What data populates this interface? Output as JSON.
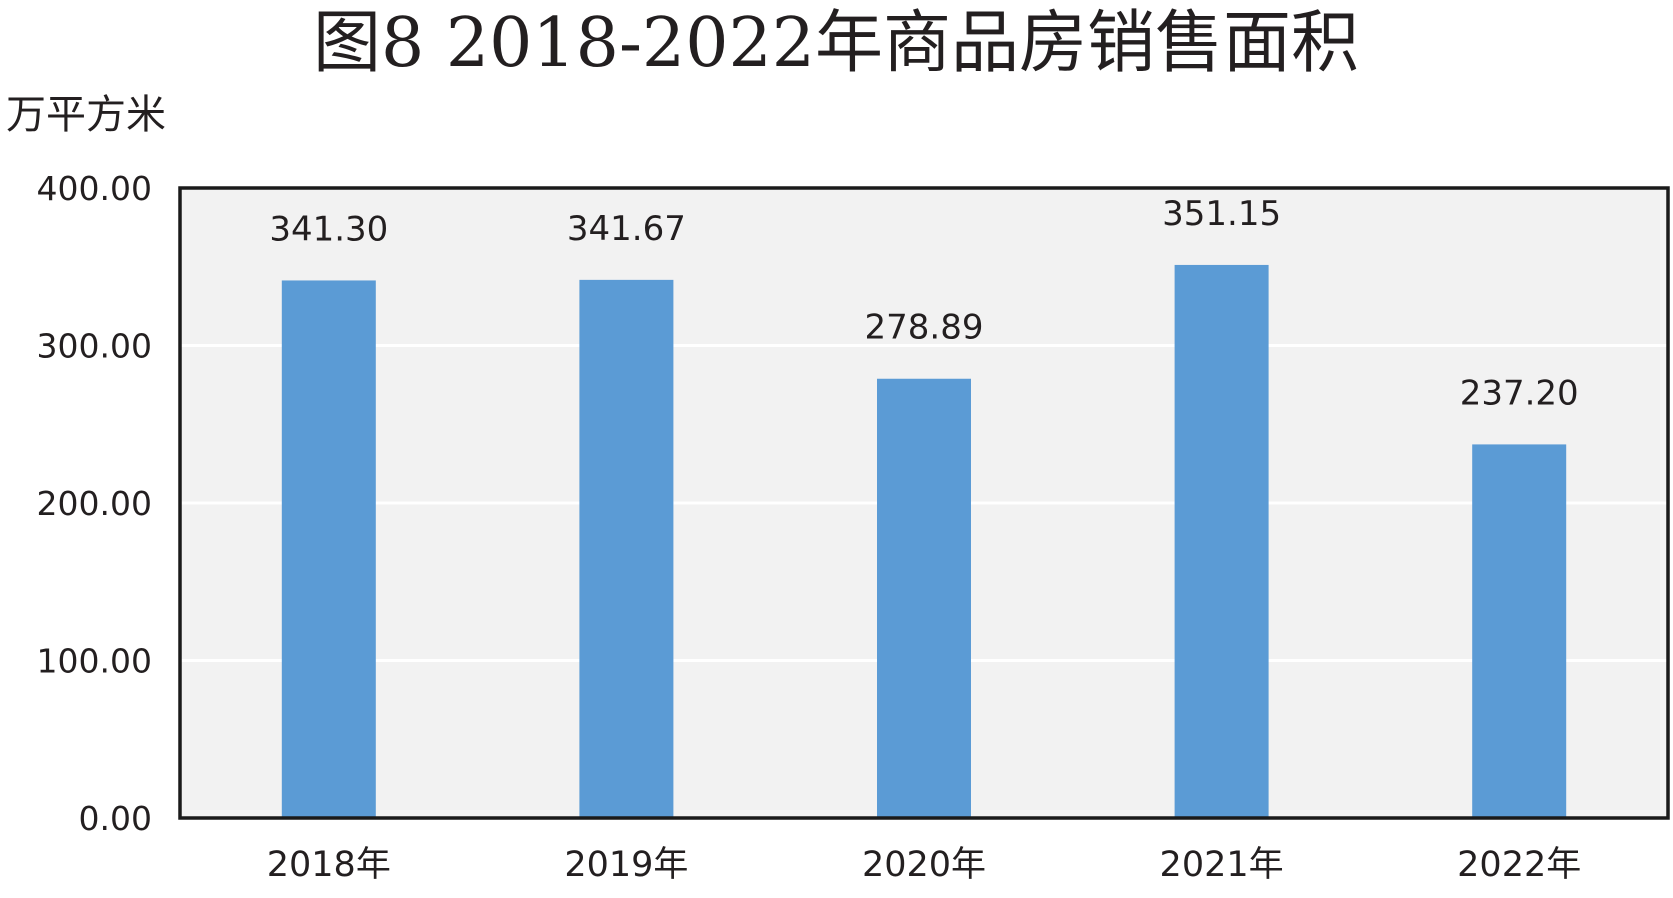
{
  "chart_data": {
    "type": "bar",
    "title": "图8 2018-2022年商品房销售面积",
    "unit_label": "万平方米",
    "categories": [
      "2018年",
      "2019年",
      "2020年",
      "2021年",
      "2022年"
    ],
    "values": [
      341.3,
      341.67,
      278.89,
      351.15,
      237.2
    ],
    "data_labels": [
      "341.30",
      "341.67",
      "278.89",
      "351.15",
      "237.20"
    ],
    "ylim": [
      0,
      400
    ],
    "yticks": [
      0,
      100,
      200,
      300,
      400
    ],
    "ytick_labels": [
      "0.00",
      "100.00",
      "200.00",
      "300.00",
      "400.00"
    ],
    "grid": true,
    "legend": "none",
    "colors": {
      "bar": "#5b9bd5",
      "plot_bg": "#f2f2f2",
      "grid": "#ffffff",
      "frame": "#1a1a1a"
    }
  }
}
